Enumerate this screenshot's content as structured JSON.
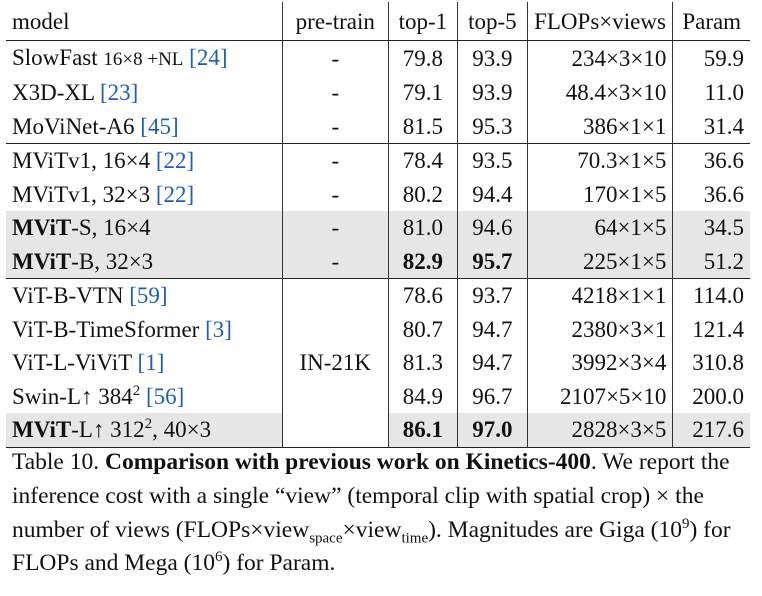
{
  "table": {
    "headers": [
      "model",
      "pre-train",
      "top-1",
      "top-5",
      "FLOPs×views",
      "Param"
    ],
    "groups": [
      {
        "rows": [
          {
            "model_bold": "",
            "model_rest": "SlowFast ",
            "model_small": "16×8 +NL",
            "cite": "24",
            "pretrain": "-",
            "top1": "79.8",
            "top5": "93.9",
            "flops": "234×3×10",
            "param": "59.9"
          },
          {
            "model_bold": "",
            "model_rest": "X3D-XL ",
            "cite": "23",
            "pretrain": "-",
            "top1": "79.1",
            "top5": "93.9",
            "flops": "48.4×3×10",
            "param": "11.0"
          },
          {
            "model_bold": "",
            "model_rest": "MoViNet-A6 ",
            "cite": "45",
            "pretrain": "-",
            "top1": "81.5",
            "top5": "95.3",
            "flops": "386×1×1",
            "param": "31.4"
          }
        ]
      },
      {
        "rows": [
          {
            "model_bold": "",
            "model_rest": "MViTv1, 16×4 ",
            "cite": "22",
            "pretrain": "-",
            "top1": "78.4",
            "top5": "93.5",
            "flops": "70.3×1×5",
            "param": "36.6"
          },
          {
            "model_bold": "",
            "model_rest": "MViTv1, 32×3 ",
            "cite": "22",
            "pretrain": "-",
            "top1": "80.2",
            "top5": "94.4",
            "flops": "170×1×5",
            "param": "36.6"
          },
          {
            "model_bold": "MViT",
            "model_rest": "-S, 16×4",
            "pretrain": "-",
            "top1": "81.0",
            "top5": "94.6",
            "flops": "64×1×5",
            "param": "34.5"
          },
          {
            "model_bold": "MViT",
            "model_rest": "-B, 32×3",
            "pretrain": "-",
            "top1": "82.9",
            "top5": "95.7",
            "flops": "225×1×5",
            "param": "51.2"
          }
        ]
      },
      {
        "pretrain_label": "IN-21K",
        "rows": [
          {
            "model_bold": "",
            "model_rest": "ViT-B-VTN ",
            "cite": "59",
            "top1": "78.6",
            "top5": "93.7",
            "flops": "4218×1×1",
            "param": "114.0"
          },
          {
            "model_bold": "",
            "model_rest": "ViT-B-TimeSformer ",
            "cite": "3",
            "top1": "80.7",
            "top5": "94.7",
            "flops": "2380×3×1",
            "param": "121.4"
          },
          {
            "model_bold": "",
            "model_rest": "ViT-L-ViViT ",
            "cite": "1",
            "top1": "81.3",
            "top5": "94.7",
            "flops": "3992×3×4",
            "param": "310.8"
          },
          {
            "model_bold": "",
            "model_rest": "Swin-L↑ 384",
            "model_sup": "2",
            "model_tail": " ",
            "cite": "56",
            "top1": "84.9",
            "top5": "96.7",
            "flops": "2107×5×10",
            "param": "200.0"
          },
          {
            "model_bold": "MViT",
            "model_rest": "-L↑ 312",
            "model_sup": "2",
            "model_tail": ", 40×3",
            "top1": "86.1",
            "top5": "97.0",
            "flops": "2828×3×5",
            "param": "217.6"
          }
        ]
      }
    ]
  },
  "caption": {
    "label": "Table 10.",
    "title": "Comparison with previous work on Kinetics-400",
    "t1": ". We report the inference cost with a single “view” (temporal clip with spatial crop) × the number of views (FLOPs×view",
    "sub_space": "space",
    "t2": "×view",
    "sub_time": "time",
    "t3": "). Magnitudes are Giga (10",
    "sup9": "9",
    "t4": ") for FLOPs and Mega (10",
    "sup6": "6",
    "t5": ") for Param."
  }
}
